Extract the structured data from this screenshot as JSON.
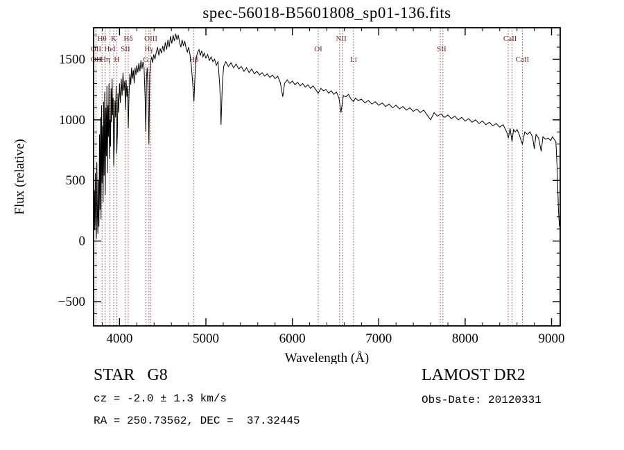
{
  "title": "spec-56018-B5601808_sp01-136.fits",
  "footer": {
    "class_label": "STAR   G8",
    "survey": "LAMOST DR2",
    "cz": "cz = -2.0 ± 1.3 km/s",
    "obs_date": "Obs-Date: 20120331",
    "radec": "RA = 250.73562, DEC =  37.32445"
  },
  "chart_data": {
    "type": "line",
    "title": "spec-56018-B5601808_sp01-136.fits",
    "xlabel": "Wavelength (Å)",
    "ylabel": "Flux (relative)",
    "xlim": [
      3700,
      9100
    ],
    "ylim": [
      -700,
      1760
    ],
    "xticks": [
      4000,
      5000,
      6000,
      7000,
      8000,
      9000
    ],
    "yticks": [
      -500,
      0,
      500,
      1000,
      1500
    ],
    "x_minor_step": 200,
    "y_minor_step": 100,
    "grid": false,
    "legend": "none",
    "series_color": "#000000",
    "marker_color": "#9b4040",
    "label_color": "#701f1f",
    "spectral_lines": [
      3727,
      3798,
      3835,
      3889,
      3933,
      3968,
      4068,
      4101,
      4304,
      4340,
      4363,
      4861,
      6300,
      6548,
      6583,
      6708,
      7712,
      7742,
      8498,
      8542,
      8662
    ],
    "line_labels": [
      {
        "text": "Hθ",
        "wl": 3798,
        "row": 1
      },
      {
        "text": "K",
        "wl": 3933,
        "row": 1
      },
      {
        "text": "Hδ",
        "wl": 4101,
        "row": 1
      },
      {
        "text": "OIII",
        "wl": 4363,
        "row": 1
      },
      {
        "text": "NII",
        "wl": 6566,
        "row": 1
      },
      {
        "text": "CaII",
        "wl": 8520,
        "row": 1
      },
      {
        "text": "OII",
        "wl": 3727,
        "row": 2
      },
      {
        "text": "HeI",
        "wl": 3889,
        "row": 2
      },
      {
        "text": "SII",
        "wl": 4068,
        "row": 2
      },
      {
        "text": "Hγ",
        "wl": 4340,
        "row": 2
      },
      {
        "text": "OI",
        "wl": 6300,
        "row": 2
      },
      {
        "text": "SII",
        "wl": 7727,
        "row": 2
      },
      {
        "text": "OII",
        "wl": 3729,
        "row": 3
      },
      {
        "text": "Hη",
        "wl": 3835,
        "row": 3
      },
      {
        "text": "H",
        "wl": 3968,
        "row": 3
      },
      {
        "text": "G",
        "wl": 4304,
        "row": 3
      },
      {
        "text": "Hβ",
        "wl": 4861,
        "row": 3
      },
      {
        "text": "Li",
        "wl": 6708,
        "row": 3
      },
      {
        "text": "CaII",
        "wl": 8662,
        "row": 3
      }
    ],
    "points": [
      [
        3700,
        30
      ],
      [
        3708,
        420
      ],
      [
        3714,
        90
      ],
      [
        3720,
        560
      ],
      [
        3726,
        140
      ],
      [
        3732,
        20
      ],
      [
        3738,
        650
      ],
      [
        3744,
        210
      ],
      [
        3750,
        60
      ],
      [
        3756,
        500
      ],
      [
        3762,
        120
      ],
      [
        3768,
        880
      ],
      [
        3774,
        260
      ],
      [
        3780,
        1020
      ],
      [
        3786,
        180
      ],
      [
        3792,
        1120
      ],
      [
        3798,
        480
      ],
      [
        3804,
        950
      ],
      [
        3810,
        320
      ],
      [
        3816,
        1150
      ],
      [
        3822,
        540
      ],
      [
        3828,
        1230
      ],
      [
        3835,
        380
      ],
      [
        3842,
        1100
      ],
      [
        3848,
        700
      ],
      [
        3854,
        1280
      ],
      [
        3860,
        560
      ],
      [
        3866,
        1120
      ],
      [
        3872,
        860
      ],
      [
        3878,
        1300
      ],
      [
        3884,
        680
      ],
      [
        3890,
        1000
      ],
      [
        3896,
        780
      ],
      [
        3902,
        1260
      ],
      [
        3908,
        980
      ],
      [
        3914,
        1340
      ],
      [
        3920,
        1040
      ],
      [
        3926,
        1180
      ],
      [
        3933,
        620
      ],
      [
        3940,
        820
      ],
      [
        3947,
        1160
      ],
      [
        3954,
        1020
      ],
      [
        3961,
        1280
      ],
      [
        3968,
        720
      ],
      [
        3975,
        880
      ],
      [
        3982,
        1220
      ],
      [
        3990,
        1060
      ],
      [
        4000,
        1300
      ],
      [
        4010,
        1140
      ],
      [
        4020,
        1340
      ],
      [
        4030,
        1200
      ],
      [
        4040,
        1390
      ],
      [
        4050,
        1240
      ],
      [
        4060,
        1320
      ],
      [
        4068,
        1080
      ],
      [
        4076,
        1330
      ],
      [
        4085,
        1190
      ],
      [
        4093,
        1280
      ],
      [
        4101,
        930
      ],
      [
        4110,
        1210
      ],
      [
        4120,
        1380
      ],
      [
        4130,
        1290
      ],
      [
        4140,
        1430
      ],
      [
        4150,
        1340
      ],
      [
        4160,
        1410
      ],
      [
        4170,
        1300
      ],
      [
        4180,
        1430
      ],
      [
        4190,
        1370
      ],
      [
        4200,
        1450
      ],
      [
        4212,
        1390
      ],
      [
        4224,
        1470
      ],
      [
        4236,
        1400
      ],
      [
        4248,
        1490
      ],
      [
        4260,
        1420
      ],
      [
        4272,
        1480
      ],
      [
        4284,
        1430
      ],
      [
        4296,
        1180
      ],
      [
        4304,
        900
      ],
      [
        4312,
        1350
      ],
      [
        4320,
        1430
      ],
      [
        4330,
        1220
      ],
      [
        4340,
        800
      ],
      [
        4350,
        1380
      ],
      [
        4360,
        1480
      ],
      [
        4372,
        1520
      ],
      [
        4384,
        1470
      ],
      [
        4396,
        1540
      ],
      [
        4410,
        1500
      ],
      [
        4425,
        1560
      ],
      [
        4440,
        1600
      ],
      [
        4455,
        1530
      ],
      [
        4470,
        1590
      ],
      [
        4485,
        1550
      ],
      [
        4500,
        1610
      ],
      [
        4515,
        1560
      ],
      [
        4530,
        1640
      ],
      [
        4545,
        1580
      ],
      [
        4560,
        1660
      ],
      [
        4575,
        1600
      ],
      [
        4590,
        1690
      ],
      [
        4605,
        1630
      ],
      [
        4620,
        1700
      ],
      [
        4635,
        1650
      ],
      [
        4650,
        1710
      ],
      [
        4665,
        1660
      ],
      [
        4680,
        1700
      ],
      [
        4695,
        1640
      ],
      [
        4710,
        1600
      ],
      [
        4725,
        1660
      ],
      [
        4740,
        1610
      ],
      [
        4755,
        1650
      ],
      [
        4770,
        1590
      ],
      [
        4785,
        1560
      ],
      [
        4800,
        1600
      ],
      [
        4815,
        1540
      ],
      [
        4830,
        1460
      ],
      [
        4845,
        1320
      ],
      [
        4861,
        1150
      ],
      [
        4877,
        1420
      ],
      [
        4890,
        1520
      ],
      [
        4905,
        1560
      ],
      [
        4920,
        1580
      ],
      [
        4935,
        1530
      ],
      [
        4950,
        1570
      ],
      [
        4965,
        1520
      ],
      [
        4980,
        1550
      ],
      [
        5000,
        1510
      ],
      [
        5020,
        1540
      ],
      [
        5040,
        1490
      ],
      [
        5060,
        1520
      ],
      [
        5080,
        1480
      ],
      [
        5100,
        1500
      ],
      [
        5120,
        1450
      ],
      [
        5140,
        1480
      ],
      [
        5160,
        1280
      ],
      [
        5175,
        960
      ],
      [
        5190,
        1300
      ],
      [
        5205,
        1440
      ],
      [
        5230,
        1480
      ],
      [
        5260,
        1440
      ],
      [
        5290,
        1470
      ],
      [
        5320,
        1430
      ],
      [
        5350,
        1460
      ],
      [
        5380,
        1420
      ],
      [
        5410,
        1440
      ],
      [
        5440,
        1400
      ],
      [
        5470,
        1430
      ],
      [
        5500,
        1390
      ],
      [
        5530,
        1420
      ],
      [
        5560,
        1380
      ],
      [
        5590,
        1400
      ],
      [
        5620,
        1370
      ],
      [
        5650,
        1390
      ],
      [
        5680,
        1360
      ],
      [
        5710,
        1380
      ],
      [
        5740,
        1350
      ],
      [
        5770,
        1370
      ],
      [
        5800,
        1340
      ],
      [
        5830,
        1360
      ],
      [
        5860,
        1310
      ],
      [
        5890,
        1190
      ],
      [
        5910,
        1300
      ],
      [
        5940,
        1330
      ],
      [
        5970,
        1300
      ],
      [
        6000,
        1320
      ],
      [
        6030,
        1290
      ],
      [
        6060,
        1310
      ],
      [
        6090,
        1280
      ],
      [
        6120,
        1300
      ],
      [
        6150,
        1270
      ],
      [
        6180,
        1290
      ],
      [
        6210,
        1260
      ],
      [
        6240,
        1280
      ],
      [
        6270,
        1250
      ],
      [
        6300,
        1220
      ],
      [
        6330,
        1260
      ],
      [
        6360,
        1240
      ],
      [
        6390,
        1250
      ],
      [
        6420,
        1220
      ],
      [
        6450,
        1240
      ],
      [
        6480,
        1210
      ],
      [
        6510,
        1230
      ],
      [
        6540,
        1180
      ],
      [
        6563,
        1060
      ],
      [
        6590,
        1200
      ],
      [
        6620,
        1190
      ],
      [
        6650,
        1210
      ],
      [
        6680,
        1170
      ],
      [
        6708,
        1150
      ],
      [
        6730,
        1180
      ],
      [
        6760,
        1160
      ],
      [
        6800,
        1170
      ],
      [
        6840,
        1140
      ],
      [
        6880,
        1160
      ],
      [
        6920,
        1130
      ],
      [
        6960,
        1150
      ],
      [
        7000,
        1120
      ],
      [
        7040,
        1140
      ],
      [
        7080,
        1110
      ],
      [
        7120,
        1130
      ],
      [
        7160,
        1100
      ],
      [
        7200,
        1120
      ],
      [
        7240,
        1090
      ],
      [
        7280,
        1110
      ],
      [
        7320,
        1080
      ],
      [
        7360,
        1100
      ],
      [
        7400,
        1070
      ],
      [
        7440,
        1090
      ],
      [
        7480,
        1060
      ],
      [
        7520,
        1080
      ],
      [
        7560,
        1040
      ],
      [
        7600,
        1000
      ],
      [
        7640,
        1060
      ],
      [
        7680,
        1030
      ],
      [
        7720,
        1050
      ],
      [
        7760,
        1020
      ],
      [
        7800,
        1040
      ],
      [
        7840,
        1010
      ],
      [
        7880,
        1030
      ],
      [
        7920,
        1000
      ],
      [
        7960,
        1020
      ],
      [
        8000,
        990
      ],
      [
        8040,
        1010
      ],
      [
        8080,
        980
      ],
      [
        8120,
        1000
      ],
      [
        8160,
        970
      ],
      [
        8200,
        990
      ],
      [
        8240,
        960
      ],
      [
        8280,
        980
      ],
      [
        8320,
        950
      ],
      [
        8360,
        970
      ],
      [
        8400,
        940
      ],
      [
        8440,
        960
      ],
      [
        8480,
        900
      ],
      [
        8500,
        850
      ],
      [
        8520,
        930
      ],
      [
        8542,
        820
      ],
      [
        8560,
        920
      ],
      [
        8580,
        900
      ],
      [
        8600,
        920
      ],
      [
        8620,
        890
      ],
      [
        8662,
        800
      ],
      [
        8690,
        900
      ],
      [
        8720,
        880
      ],
      [
        8750,
        900
      ],
      [
        8780,
        860
      ],
      [
        8800,
        760
      ],
      [
        8820,
        880
      ],
      [
        8850,
        850
      ],
      [
        8880,
        740
      ],
      [
        8900,
        860
      ],
      [
        8930,
        840
      ],
      [
        8960,
        850
      ],
      [
        8990,
        830
      ],
      [
        9010,
        860
      ],
      [
        9030,
        840
      ],
      [
        9050,
        820
      ],
      [
        9065,
        600
      ],
      [
        9080,
        250
      ],
      [
        9090,
        120
      ]
    ]
  }
}
